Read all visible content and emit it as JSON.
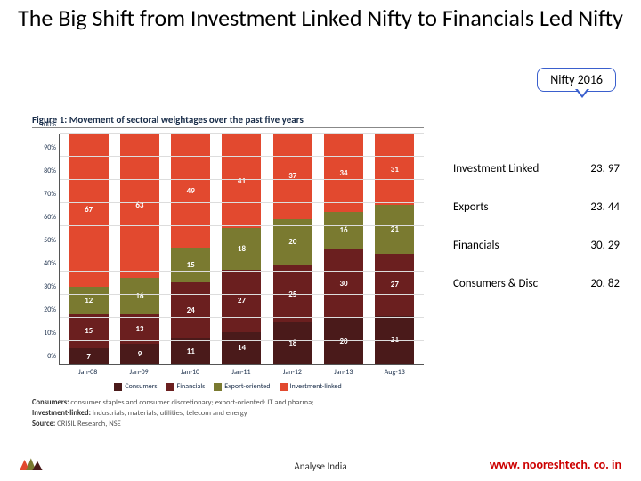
{
  "title": "The Big Shift from Investment Linked Nifty to Financials Led Nifty",
  "callout": "Nifty 2016",
  "figure": {
    "caption": "Figure 1: Movement of sectoral weightages over the past five years",
    "yticks": [
      "0%",
      "10%",
      "20%",
      "30%",
      "40%",
      "50%",
      "60%",
      "70%",
      "80%",
      "90%",
      "100%"
    ],
    "categories": [
      "Jan-08",
      "Jan-09",
      "Jan-10",
      "Jan-11",
      "Jan-12",
      "Jan-13",
      "Aug-13"
    ],
    "series": [
      {
        "name": "Consumers",
        "color": "#4a1a1a"
      },
      {
        "name": "Financials",
        "color": "#6b1f1f"
      },
      {
        "name": "Export-oriented",
        "color": "#7a7a30"
      },
      {
        "name": "Investment-linked",
        "color": "#e2492f"
      }
    ],
    "stacks": [
      {
        "consumers": 7,
        "financials": 15,
        "export": 12,
        "invest": 67
      },
      {
        "consumers": 9,
        "financials": 13,
        "export": 16,
        "invest": 63
      },
      {
        "consumers": 11,
        "financials": 24,
        "export": 15,
        "invest": 49
      },
      {
        "consumers": 14,
        "financials": 27,
        "export": 18,
        "invest": 41
      },
      {
        "consumers": 18,
        "financials": 25,
        "export": 20,
        "invest": 37
      },
      {
        "consumers": 20,
        "financials": 30,
        "export": 16,
        "invest": 34
      },
      {
        "consumers": 21,
        "financials": 27,
        "export": 21,
        "invest": 31
      }
    ],
    "note_consumers_label": "Consumers:",
    "note_consumers": " consumer staples and consumer discretionary; export-oriented: IT and pharma;",
    "note_invest_label": "Investment-linked:",
    "note_invest": " industrials, materials, utilities, telecom and energy",
    "source_label": "Source:",
    "source": " CRISIL Research, NSE"
  },
  "table": [
    {
      "label": "Investment Linked",
      "value": "23. 97"
    },
    {
      "label": "Exports",
      "value": "23. 44"
    },
    {
      "label": "Financials",
      "value": "30. 29"
    },
    {
      "label": "Consumers & Disc",
      "value": "20. 82"
    }
  ],
  "footer": {
    "center": "Analyse India",
    "right": "www. nooreshtech. co. in",
    "logo_text": "ANALYSE INDIA"
  },
  "colors": {
    "callout_border": "#3a5fcd"
  }
}
